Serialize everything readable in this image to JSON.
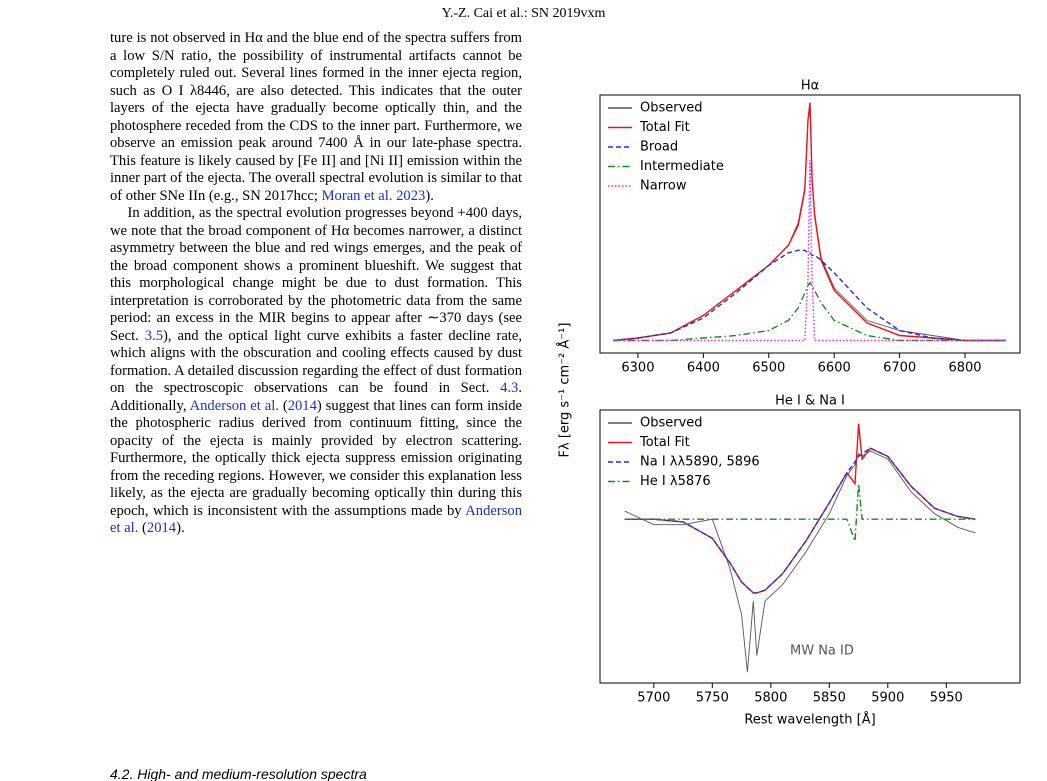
{
  "header": "Y.-Z. Cai et al.: SN 2019vxm",
  "paragraphs": [
    [
      {
        "text": "ture is not observed in Hα and the blue end of the spectra suffers from a low S/N ratio, the possibility of instrumental artifacts cannot be completely ruled out. Several lines formed in the inner ejecta region, such as O I λ8446, are also detected. This indicates that the outer layers of the ejecta have gradually become optically thin, and the photosphere receded from the CDS to the inner part. Furthermore, we observe an emission peak around 7400 Å in our late-phase spectra. This feature is likely caused by [Fe II] and [Ni II] emission within the inner part of the ejecta. The overall spectral evolution is similar to that of other SNe IIn (e.g., SN 2017hcc; "
      },
      {
        "text": "Moran et al. 2023",
        "link": true
      },
      {
        "text": ")."
      }
    ],
    [
      {
        "text": "In addition, as the spectral evolution progresses beyond +400 days, we note that the broad component of Hα becomes narrower, a distinct asymmetry between the blue and red wings emerges, and the peak of the broad component shows a prominent blueshift. We suggest that this morphological change might be due to dust formation. This interpretation is corroborated by the photometric data from the same period: an excess in the MIR begins to appear after ∼370 days (see Sect. "
      },
      {
        "text": "3.5",
        "link": true
      },
      {
        "text": "), and the optical light curve exhibits a faster decline rate, which aligns with the obscuration and cooling effects caused by dust formation. A detailed discussion regarding the effect of dust formation on the spectroscopic observations can be found in Sect. "
      },
      {
        "text": "4.3",
        "link": true
      },
      {
        "text": ". Additionally, "
      },
      {
        "text": "Anderson et al.",
        "link": true
      },
      {
        "text": " ("
      },
      {
        "text": "2014",
        "link": true
      },
      {
        "text": ") suggest that lines can form inside the photospheric radius derived from continuum fitting, since the opacity of the ejecta is mainly provided by electron scattering. Furthermore, the optically thick ejecta suppress emission originating from the receding regions. However, we consider this explanation less likely, as the ejecta are gradually becoming optically thin during this epoch, which is inconsistent with the assumptions made by "
      },
      {
        "text": "Anderson et al.",
        "link": true
      },
      {
        "text": " ("
      },
      {
        "text": "2014",
        "link": true
      },
      {
        "text": ")."
      }
    ]
  ],
  "figure": {
    "y_label": "Fλ [erg s⁻¹ cm⁻² Å⁻¹]",
    "x_label": "Rest wavelength [Å]",
    "charts": [
      {
        "type": "line",
        "title": "Hα",
        "legend": "upper left",
        "x": [
          6262,
          6300,
          6350,
          6400,
          6450,
          6500,
          6530,
          6545,
          6555,
          6560,
          6563,
          6566,
          6570,
          6580,
          6600,
          6650,
          6700,
          6750,
          6800,
          6862
        ],
        "xlim": [
          6242,
          6884
        ],
        "xticks": [
          6300,
          6400,
          6500,
          6600,
          6700,
          6800
        ],
        "ylim": [
          0,
          1.03
        ],
        "series": [
          {
            "name": "Observed",
            "color": "#555555",
            "style": "solid",
            "values": [
              0.05,
              0.06,
              0.08,
              0.15,
              0.25,
              0.35,
              0.43,
              0.52,
              0.66,
              0.93,
              1.0,
              0.7,
              0.56,
              0.38,
              0.26,
              0.13,
              0.09,
              0.07,
              0.05,
              0.05
            ]
          },
          {
            "name": "Total Fit",
            "color": "#e8141c",
            "style": "solid",
            "values": [
              0.05,
              0.06,
              0.08,
              0.15,
              0.25,
              0.35,
              0.43,
              0.51,
              0.65,
              0.93,
              1.0,
              0.7,
              0.55,
              0.37,
              0.25,
              0.12,
              0.07,
              0.06,
              0.05,
              0.05
            ]
          },
          {
            "name": "Broad",
            "color": "#1f2fdc",
            "style": "dashed",
            "values": [
              0.05,
              0.06,
              0.08,
              0.14,
              0.24,
              0.35,
              0.4,
              0.41,
              0.41,
              0.4,
              0.4,
              0.39,
              0.39,
              0.37,
              0.32,
              0.18,
              0.09,
              0.06,
              0.05,
              0.05
            ]
          },
          {
            "name": "Intermediate",
            "color": "#1a8a1a",
            "style": "dashdot",
            "values": [
              0.05,
              0.05,
              0.05,
              0.06,
              0.07,
              0.09,
              0.13,
              0.18,
              0.24,
              0.27,
              0.28,
              0.27,
              0.25,
              0.2,
              0.13,
              0.07,
              0.05,
              0.05,
              0.05,
              0.05
            ]
          },
          {
            "name": "Narrow",
            "color": "#ee22ee",
            "style": "dotted",
            "values": [
              0.05,
              0.05,
              0.05,
              0.05,
              0.05,
              0.05,
              0.05,
              0.05,
              0.05,
              0.3,
              0.77,
              0.3,
              0.05,
              0.05,
              0.05,
              0.05,
              0.05,
              0.05,
              0.05,
              0.05
            ]
          }
        ]
      },
      {
        "type": "line",
        "title": "He I & Na I",
        "legend": "upper left",
        "annotation": "MW Na ID",
        "x": [
          5675,
          5700,
          5725,
          5750,
          5765,
          5775,
          5780,
          5785,
          5788,
          5795,
          5810,
          5830,
          5850,
          5865,
          5872,
          5875,
          5878,
          5885,
          5900,
          5920,
          5940,
          5960,
          5975
        ],
        "xlim": [
          5654,
          6013
        ],
        "xticks": [
          5700,
          5750,
          5800,
          5850,
          5900,
          5950
        ],
        "ylim": [
          0,
          1
        ],
        "series": [
          {
            "name": "Observed",
            "color": "#555555",
            "style": "solid",
            "values": [
              0.63,
              0.58,
              0.58,
              0.6,
              0.42,
              0.25,
              0.04,
              0.3,
              0.1,
              0.3,
              0.36,
              0.48,
              0.62,
              0.76,
              0.8,
              0.84,
              0.83,
              0.85,
              0.82,
              0.7,
              0.62,
              0.57,
              0.55
            ]
          },
          {
            "name": "Total Fit",
            "color": "#e8141c",
            "style": "solid",
            "values": [
              0.6,
              0.6,
              0.59,
              0.53,
              0.44,
              0.37,
              0.35,
              0.33,
              0.33,
              0.34,
              0.4,
              0.52,
              0.66,
              0.77,
              0.73,
              0.95,
              0.82,
              0.86,
              0.83,
              0.72,
              0.64,
              0.61,
              0.6
            ]
          },
          {
            "name": "Na I λλ5890, 5896",
            "color": "#1f2fdc",
            "style": "dashed",
            "values": [
              0.6,
              0.6,
              0.59,
              0.53,
              0.44,
              0.37,
              0.35,
              0.33,
              0.33,
              0.34,
              0.4,
              0.52,
              0.66,
              0.77,
              0.81,
              0.83,
              0.84,
              0.86,
              0.83,
              0.72,
              0.64,
              0.61,
              0.6
            ]
          },
          {
            "name": "He I λ5876",
            "color": "#1a8a1a",
            "style": "dashdot",
            "values": [
              0.6,
              0.6,
              0.6,
              0.6,
              0.6,
              0.6,
              0.6,
              0.6,
              0.6,
              0.6,
              0.6,
              0.6,
              0.6,
              0.6,
              0.52,
              0.73,
              0.6,
              0.6,
              0.6,
              0.6,
              0.6,
              0.6,
              0.6
            ]
          }
        ]
      }
    ]
  },
  "section_heading": "4.2. High- and medium-resolution spectra"
}
